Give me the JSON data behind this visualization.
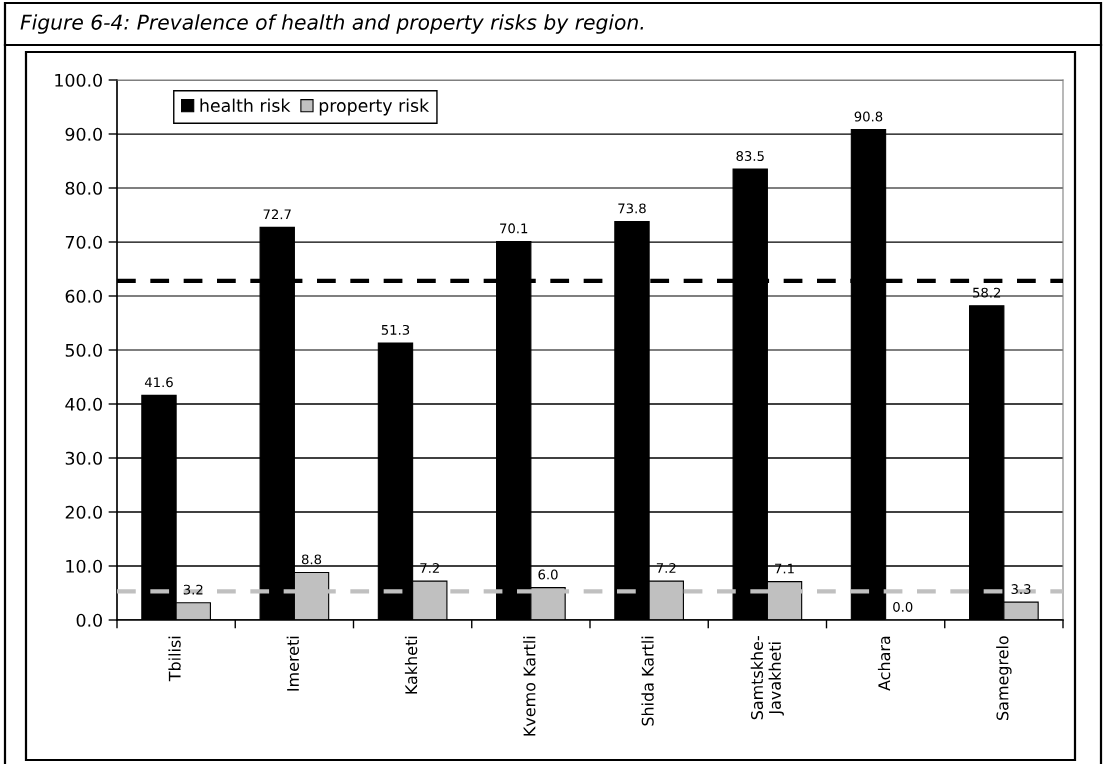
{
  "chart_data": {
    "type": "bar",
    "title": "Figure 6-4: Prevalence of health and property risks by region.",
    "categories": [
      "Tbilisi",
      "Imereti",
      "Kakheti",
      "Kvemo Kartli",
      "Shida Kartli",
      "Samtskhe-\nJavakheti",
      "Achara",
      "Samegrelo"
    ],
    "series": [
      {
        "name": "health risk",
        "color": "#000000",
        "values": [
          41.6,
          72.7,
          51.3,
          70.1,
          73.8,
          83.5,
          90.8,
          58.2
        ],
        "value_labels": [
          "41.6",
          "72.7",
          "51.3",
          "70.1",
          "73.8",
          "83.5",
          "90.8",
          "58.2"
        ]
      },
      {
        "name": "property risk",
        "color": "#c0c0c0",
        "values": [
          3.2,
          8.8,
          7.2,
          6.0,
          7.2,
          7.1,
          0.0,
          3.3
        ],
        "value_labels": [
          "3.2",
          "8.8",
          "7.2",
          "6.0",
          "7.2",
          "7.1",
          "0.0",
          "3.3"
        ]
      }
    ],
    "ylim": [
      0,
      100
    ],
    "yticks": [
      {
        "value": 0,
        "label": "0.0"
      },
      {
        "value": 10,
        "label": "10.0"
      },
      {
        "value": 20,
        "label": "20.0"
      },
      {
        "value": 30,
        "label": "30.0"
      },
      {
        "value": 40,
        "label": "40.0"
      },
      {
        "value": 50,
        "label": "50.0"
      },
      {
        "value": 60,
        "label": "60.0"
      },
      {
        "value": 70,
        "label": "70.0"
      },
      {
        "value": 80,
        "label": "80.0"
      },
      {
        "value": 90,
        "label": "90.0"
      },
      {
        "value": 100,
        "label": "100.0"
      }
    ],
    "ref_lines": [
      {
        "axis": "y",
        "value": 62.8,
        "color": "#000000",
        "line_style": "dashed"
      },
      {
        "axis": "y",
        "value": 5.3,
        "color": "#c0c0c0",
        "line_style": "dashed"
      }
    ],
    "grid": "y",
    "legend": "top left"
  }
}
